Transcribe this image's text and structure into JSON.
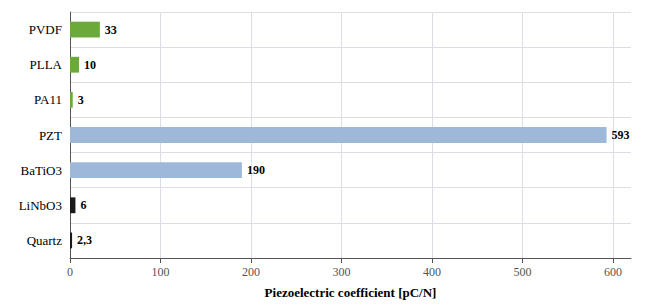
{
  "chart_data": {
    "type": "bar",
    "orientation": "horizontal",
    "categories": [
      "PVDF",
      "PLLA",
      "PA11",
      "PZT",
      "BaTiO3",
      "LiNbO3",
      "Quartz"
    ],
    "values": [
      33,
      10,
      3,
      593,
      190,
      6,
      2.3
    ],
    "value_labels": [
      "33",
      "10",
      "3",
      "593",
      "190",
      "6",
      "2,3"
    ],
    "colors": [
      "#6aaa3a",
      "#6aaa3a",
      "#6aaa3a",
      "#9eb8d9",
      "#9eb8d9",
      "#1a1a1a",
      "#1a1a1a"
    ],
    "xlabel": "Piezoelectric coefficient [pC/N]",
    "xlim": [
      0,
      620
    ],
    "xticks": [
      0,
      100,
      200,
      300,
      400,
      500,
      600
    ],
    "grid": true,
    "data_labels": true
  }
}
